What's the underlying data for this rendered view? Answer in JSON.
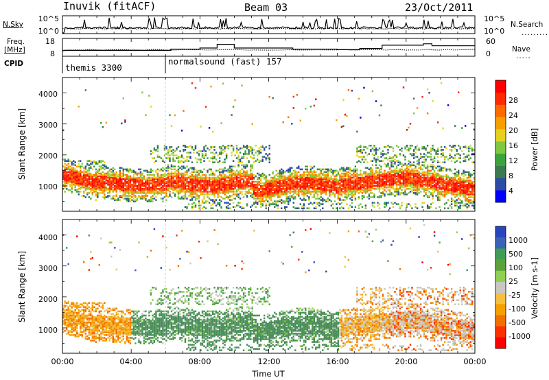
{
  "header": {
    "station": "Inuvik (fitACF)",
    "beam": "Beam 03",
    "date": "23/Oct/2011"
  },
  "side_labels": {
    "nsky": "N.Sky",
    "freq": "Freq.",
    "freq_unit": "[MHz]",
    "cpid": "CPID",
    "nsearch": "N.Search",
    "nave": "Nave"
  },
  "cpid_modes": [
    {
      "label": "themis 3300",
      "start_hour": 0
    },
    {
      "label": "normalsound (fast) 157",
      "start_hour": 6
    }
  ],
  "chart_data": [
    {
      "type": "line",
      "panel": "noise",
      "y_ticks_left": [
        "10^5",
        "10^0"
      ],
      "y_ticks_right": [
        "10^5",
        "10^0"
      ],
      "series": [
        {
          "name": "N.Sky"
        },
        {
          "name": "N.Search"
        }
      ],
      "xlim": [
        0,
        24
      ]
    },
    {
      "type": "line",
      "panel": "frequency-nave",
      "y_ticks_left": [
        "18",
        "8"
      ],
      "y_ticks_right": [
        "60",
        "0"
      ],
      "ylim_left": [
        8,
        18
      ],
      "ylim_right": [
        0,
        60
      ],
      "xlim": [
        0,
        24
      ],
      "freq_steps": [
        [
          0,
          11.0
        ],
        [
          0.2,
          11.3
        ],
        [
          6.3,
          11.3
        ],
        [
          6.3,
          12.0
        ],
        [
          8.0,
          12.0
        ],
        [
          8.0,
          12.6
        ],
        [
          9.0,
          12.6
        ],
        [
          9.0,
          14.7
        ],
        [
          10.0,
          14.7
        ],
        [
          10.0,
          12.6
        ],
        [
          13.4,
          12.6
        ],
        [
          13.4,
          12.0
        ],
        [
          16.0,
          12.0
        ],
        [
          16.0,
          11.7
        ],
        [
          17.3,
          11.7
        ],
        [
          17.3,
          12.4
        ],
        [
          18.6,
          12.4
        ],
        [
          18.6,
          14.2
        ],
        [
          21.0,
          14.2
        ],
        [
          21.0,
          15.0
        ],
        [
          21.5,
          15.0
        ],
        [
          21.5,
          13.9
        ],
        [
          24,
          13.9
        ]
      ]
    },
    {
      "type": "heatmap",
      "panel": "power",
      "ylabel": "Slant Range [km]",
      "y_ticks": [
        "1000",
        "2000",
        "3000",
        "4000"
      ],
      "ylim": [
        180,
        4500
      ],
      "xlim": [
        0,
        24
      ],
      "colorbar": {
        "label": "Power [dB]",
        "ticks": [
          "4",
          "8",
          "12",
          "16",
          "20",
          "24",
          "28"
        ],
        "range": [
          0,
          32
        ]
      }
    },
    {
      "type": "heatmap",
      "panel": "velocity",
      "ylabel": "Slant Range [km]",
      "xlabel": "Time UT",
      "y_ticks": [
        "1000",
        "2000",
        "3000",
        "4000"
      ],
      "x_ticks": [
        "00:00",
        "04:00",
        "08:00",
        "12:00",
        "16:00",
        "20:00",
        "00:00"
      ],
      "ylim": [
        180,
        4500
      ],
      "xlim": [
        0,
        24
      ],
      "colorbar": {
        "label": "Velocity [m s-1]",
        "ticks": [
          "1000",
          "500",
          "100",
          "25",
          "-25",
          "-100",
          "-500",
          "-1000"
        ]
      }
    }
  ],
  "colors": {
    "power_scale": [
      "#0000ff",
      "#2c4aa6",
      "#3a7a4e",
      "#3aa33a",
      "#80c840",
      "#e6d21e",
      "#f5a000",
      "#ff6a00",
      "#ff2a00",
      "#ff0000"
    ],
    "velocity_scale": [
      "#2845c0",
      "#3a63b5",
      "#3f9c57",
      "#5aa23a",
      "#90d050",
      "#c8c8c0",
      "#f5c040",
      "#f5a000",
      "#f07000",
      "#ff3000",
      "#ff0000"
    ],
    "velocity_dominant": "#4a8c5c",
    "cpid_marker": "#dddddd"
  }
}
